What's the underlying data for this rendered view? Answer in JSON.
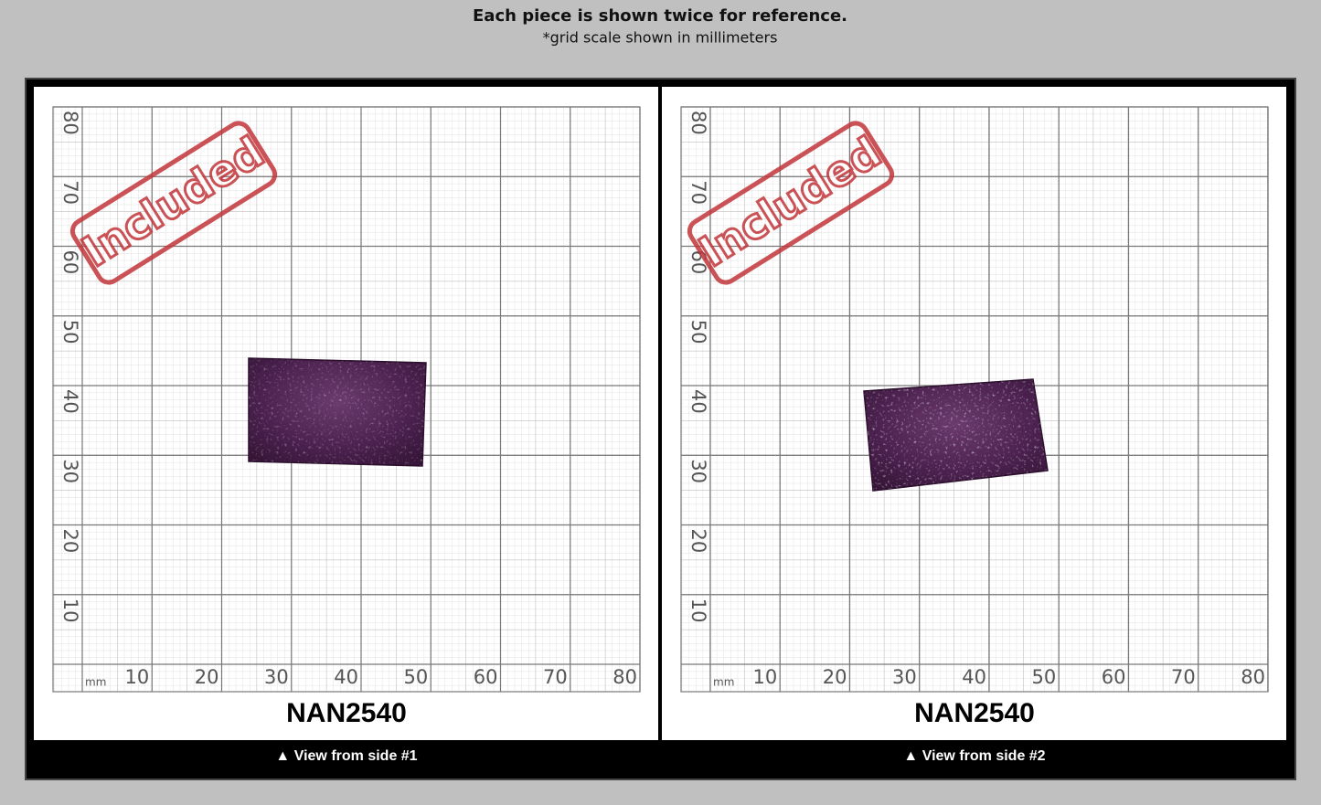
{
  "header": {
    "title": "Each piece is shown twice for reference.",
    "subtitle": "*grid scale shown in millimeters"
  },
  "panels": [
    {
      "stamp": "Included",
      "unit": "mm",
      "x_labels": [
        10,
        20,
        30,
        40,
        50,
        60,
        70,
        80
      ],
      "y_labels": [
        10,
        20,
        30,
        40,
        50,
        60,
        70,
        80
      ],
      "code": "NAN2540",
      "caption": "▲ View from side #1"
    },
    {
      "stamp": "Included",
      "unit": "mm",
      "x_labels": [
        10,
        20,
        30,
        40,
        50,
        60,
        70,
        80
      ],
      "y_labels": [
        10,
        20,
        30,
        40,
        50,
        60,
        70,
        80
      ],
      "code": "NAN2540",
      "caption": "▲ View from side #2"
    }
  ]
}
